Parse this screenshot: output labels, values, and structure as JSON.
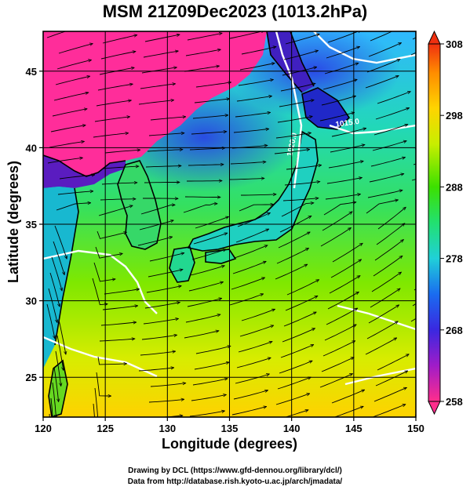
{
  "title": "MSM 21Z09Dec2023 (1013.2hPa)",
  "xaxis": {
    "label": "Longitude (degrees)",
    "range": [
      120,
      150
    ],
    "ticks": [
      120,
      125,
      130,
      135,
      140,
      145,
      150
    ]
  },
  "yaxis": {
    "label": "Latitude  (degrees)",
    "range": [
      22.4,
      47.6
    ],
    "ticks": [
      25,
      30,
      35,
      40,
      45
    ]
  },
  "colorbar": {
    "range": [
      258,
      308
    ],
    "ticks": [
      258,
      268,
      278,
      288,
      298,
      308
    ],
    "colors": [
      "#ff2d8c",
      "#a01cc8",
      "#3a28e0",
      "#1a6cf0",
      "#20d0d8",
      "#22e070",
      "#3ce000",
      "#c8ee00",
      "#ffd400",
      "#ff8c00",
      "#f03010"
    ]
  },
  "isobars": [
    {
      "label": "1020.0"
    },
    {
      "label": "1015.0"
    }
  ],
  "grid": true,
  "credits": {
    "line1": "Drawing by DCL (https://www.gfd-dennou.org/library/dcl/)",
    "line2": "Data from http://database.rish.kyoto-u.ac.jp/arch/jmadata/"
  }
}
